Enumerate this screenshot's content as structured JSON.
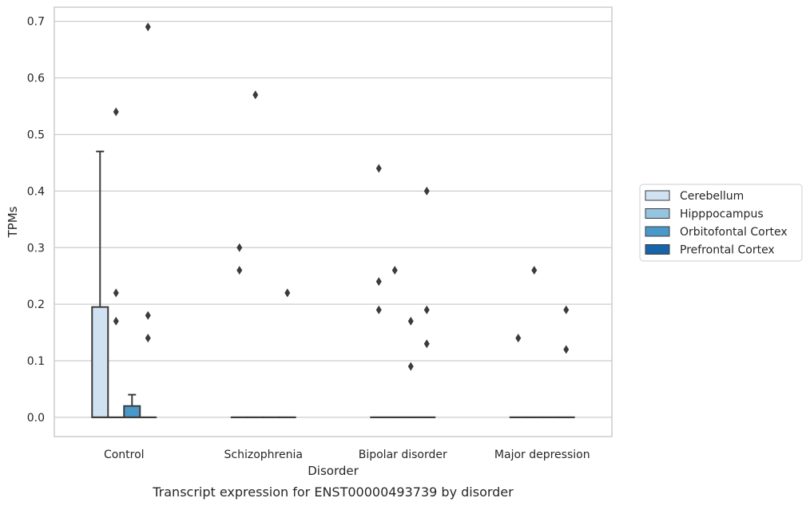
{
  "chart_data": {
    "type": "box",
    "title": "",
    "caption": "Transcript expression for ENST00000493739 by disorder",
    "xlabel": "Disorder",
    "ylabel": "TPMs",
    "ylim": [
      -0.034,
      0.725
    ],
    "yticks": [
      0.0,
      0.1,
      0.2,
      0.3,
      0.4,
      0.5,
      0.6,
      0.7
    ],
    "ytick_labels": [
      "0.0",
      "0.1",
      "0.2",
      "0.3",
      "0.4",
      "0.5",
      "0.6",
      "0.7"
    ],
    "grid": "horizontal",
    "legend_position": "right",
    "categories": [
      "Control",
      "Schizophrenia",
      "Bipolar disorder",
      "Major depression"
    ],
    "series": [
      {
        "name": "Cerebellum",
        "color": "#d0e1f2",
        "boxes": [
          {
            "q1": 0.0,
            "median": 0.0,
            "q3": 0.195,
            "whisker_low": 0.0,
            "whisker_high": 0.47,
            "outliers": []
          },
          {
            "q1": 0.0,
            "median": 0.0,
            "q3": 0.0,
            "whisker_low": 0.0,
            "whisker_high": 0.0,
            "outliers": [
              0.3,
              0.26
            ]
          },
          {
            "q1": 0.0,
            "median": 0.0,
            "q3": 0.0,
            "whisker_low": 0.0,
            "whisker_high": 0.0,
            "outliers": [
              0.44,
              0.24,
              0.19
            ]
          },
          {
            "q1": 0.0,
            "median": 0.0,
            "q3": 0.0,
            "whisker_low": 0.0,
            "whisker_high": 0.0,
            "outliers": [
              0.14
            ]
          }
        ]
      },
      {
        "name": "Hipppocampus",
        "color": "#94c4df",
        "boxes": [
          {
            "q1": 0.0,
            "median": 0.0,
            "q3": 0.0,
            "whisker_low": 0.0,
            "whisker_high": 0.0,
            "outliers": [
              0.54,
              0.22,
              0.17
            ]
          },
          {
            "q1": 0.0,
            "median": 0.0,
            "q3": 0.0,
            "whisker_low": 0.0,
            "whisker_high": 0.0,
            "outliers": [
              0.57
            ]
          },
          {
            "q1": 0.0,
            "median": 0.0,
            "q3": 0.0,
            "whisker_low": 0.0,
            "whisker_high": 0.0,
            "outliers": [
              0.26
            ]
          },
          {
            "q1": 0.0,
            "median": 0.0,
            "q3": 0.0,
            "whisker_low": 0.0,
            "whisker_high": 0.0,
            "outliers": [
              0.26
            ]
          }
        ]
      },
      {
        "name": "Orbitofontal Cortex",
        "color": "#4a98c9",
        "boxes": [
          {
            "q1": 0.0,
            "median": 0.0,
            "q3": 0.02,
            "whisker_low": 0.0,
            "whisker_high": 0.04,
            "outliers": []
          },
          {
            "q1": 0.0,
            "median": 0.0,
            "q3": 0.0,
            "whisker_low": 0.0,
            "whisker_high": 0.0,
            "outliers": []
          },
          {
            "q1": 0.0,
            "median": 0.0,
            "q3": 0.0,
            "whisker_low": 0.0,
            "whisker_high": 0.0,
            "outliers": [
              0.17,
              0.09
            ]
          },
          {
            "q1": 0.0,
            "median": 0.0,
            "q3": 0.0,
            "whisker_low": 0.0,
            "whisker_high": 0.0,
            "outliers": []
          }
        ]
      },
      {
        "name": "Prefrontal Cortex",
        "color": "#1764ab",
        "boxes": [
          {
            "q1": 0.0,
            "median": 0.0,
            "q3": 0.0,
            "whisker_low": 0.0,
            "whisker_high": 0.0,
            "outliers": [
              0.69,
              0.18,
              0.14
            ]
          },
          {
            "q1": 0.0,
            "median": 0.0,
            "q3": 0.0,
            "whisker_low": 0.0,
            "whisker_high": 0.0,
            "outliers": [
              0.22
            ]
          },
          {
            "q1": 0.0,
            "median": 0.0,
            "q3": 0.0,
            "whisker_low": 0.0,
            "whisker_high": 0.0,
            "outliers": [
              0.4,
              0.19,
              0.13
            ]
          },
          {
            "q1": 0.0,
            "median": 0.0,
            "q3": 0.0,
            "whisker_low": 0.0,
            "whisker_high": 0.0,
            "outliers": [
              0.19,
              0.12
            ]
          }
        ]
      }
    ]
  }
}
